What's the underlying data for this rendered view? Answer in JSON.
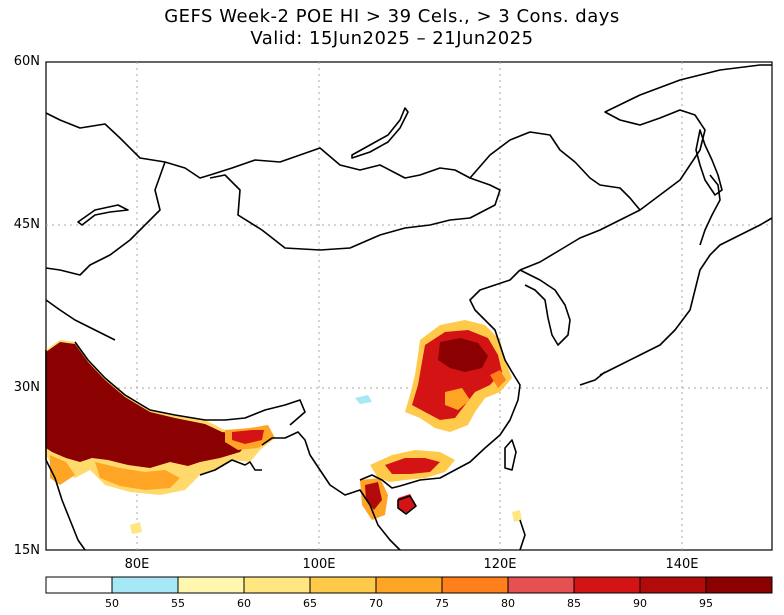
{
  "title_line1": "GEFS Week-2 POE HI > 39 Cels., > 3 Cons. days",
  "title_line2": "Valid: 15Jun2025 – 21Jun2025",
  "lat_labels": [
    "60N",
    "45N",
    "30N",
    "15N"
  ],
  "lon_labels": [
    "80E",
    "100E",
    "120E",
    "140E"
  ],
  "colorbar": {
    "labels": [
      "50",
      "55",
      "60",
      "65",
      "70",
      "75",
      "80",
      "85",
      "90",
      "95"
    ],
    "colors": [
      "#ffffff",
      "#a6e8f5",
      "#fff7b0",
      "#ffe680",
      "#ffc94a",
      "#ffa526",
      "#ff7f1a",
      "#e65050",
      "#d41414",
      "#b00a0a",
      "#8b0000"
    ]
  }
}
